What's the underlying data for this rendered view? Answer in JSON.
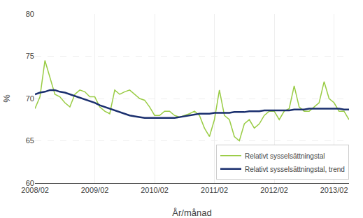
{
  "chart_data": {
    "type": "line",
    "xlabel": "År/månad",
    "ylabel": "%",
    "categories": [
      "2008/02",
      null,
      null,
      null,
      null,
      null,
      null,
      null,
      null,
      null,
      null,
      null,
      "2009/02",
      null,
      null,
      null,
      null,
      null,
      null,
      null,
      null,
      null,
      null,
      null,
      "2010/02",
      null,
      null,
      null,
      null,
      null,
      null,
      null,
      null,
      null,
      null,
      null,
      "2011/02",
      null,
      null,
      null,
      null,
      null,
      null,
      null,
      null,
      null,
      null,
      null,
      "2012/02",
      null,
      null,
      null,
      null,
      null,
      null,
      null,
      null,
      null,
      null,
      null,
      "2013/02",
      null,
      null,
      null
    ],
    "series": [
      {
        "name": "Relativt sysselsättningstal",
        "color": "#99cc44",
        "values": [
          68.8,
          70.2,
          74.5,
          72.5,
          70.5,
          70.2,
          69.5,
          69.0,
          70.5,
          71.0,
          70.8,
          70.2,
          70.2,
          69.0,
          68.5,
          68.2,
          71.0,
          70.5,
          70.8,
          71.0,
          70.5,
          70.0,
          69.8,
          69.0,
          68.0,
          68.0,
          68.5,
          68.5,
          68.0,
          67.8,
          68.0,
          68.2,
          68.5,
          68.0,
          66.5,
          65.5,
          67.5,
          71.0,
          68.0,
          67.5,
          65.5,
          65.0,
          67.0,
          67.5,
          66.5,
          67.0,
          68.0,
          68.5,
          68.5,
          67.5,
          68.5,
          68.8,
          71.5,
          69.0,
          68.5,
          68.5,
          69.0,
          69.5,
          72.0,
          70.0,
          69.5,
          68.5,
          68.5,
          67.5
        ]
      },
      {
        "name": "Relativt sysselsättningstal, trend",
        "color": "#1a2f6e",
        "values": [
          70.5,
          70.7,
          70.8,
          71.0,
          71.0,
          70.8,
          70.7,
          70.5,
          70.3,
          70.1,
          69.9,
          69.7,
          69.5,
          69.2,
          69.0,
          68.8,
          68.6,
          68.4,
          68.2,
          68.0,
          67.9,
          67.8,
          67.7,
          67.7,
          67.7,
          67.7,
          67.7,
          67.7,
          67.7,
          67.8,
          67.9,
          68.0,
          68.1,
          68.2,
          68.2,
          68.2,
          68.3,
          68.3,
          68.3,
          68.3,
          68.4,
          68.4,
          68.4,
          68.5,
          68.5,
          68.5,
          68.6,
          68.6,
          68.6,
          68.6,
          68.6,
          68.6,
          68.7,
          68.7,
          68.7,
          68.8,
          68.8,
          68.8,
          68.8,
          68.8,
          68.8,
          68.8,
          68.7,
          68.7
        ]
      }
    ],
    "ylim": [
      60,
      80
    ],
    "yticks": [
      60,
      65,
      70,
      75,
      80
    ],
    "grid": true,
    "legend": "lower right"
  }
}
